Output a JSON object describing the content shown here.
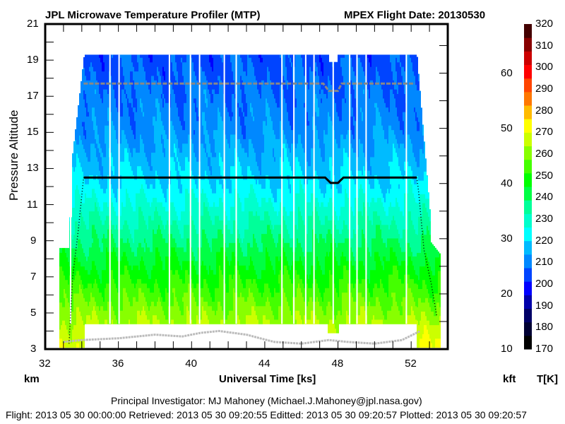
{
  "chart_data": {
    "type": "heatmap",
    "title_left": "JPL Microwave Temperature Profiler (MTP)",
    "title_right": "MPEX  Flight Date: 20130530",
    "xlabel": "Universal Time [ks]",
    "ylabel": "Pressure Altitude",
    "ylabel_left_unit": "km",
    "ylabel_right_unit": "kft",
    "colorbar_label": "T[K]",
    "xlim": [
      32,
      54
    ],
    "ylim_km": [
      3,
      21
    ],
    "ylim_kft": [
      10,
      68.9
    ],
    "x_ticks": [
      "32",
      "36",
      "40",
      "44",
      "48",
      "52"
    ],
    "y_ticks_km": [
      "3",
      "5",
      "7",
      "9",
      "11",
      "13",
      "15",
      "17",
      "19",
      "21"
    ],
    "y_ticks_kft": [
      "10",
      "20",
      "30",
      "40",
      "50",
      "60"
    ],
    "colorbar": {
      "range": [
        170,
        320
      ],
      "ticks": [
        "170",
        "180",
        "190",
        "200",
        "210",
        "220",
        "230",
        "240",
        "250",
        "260",
        "270",
        "280",
        "290",
        "300",
        "310",
        "320"
      ],
      "colors": [
        "#000000",
        "#000033",
        "#000066",
        "#0000aa",
        "#0000ff",
        "#0044ff",
        "#0088ff",
        "#00bbff",
        "#00ffff",
        "#00ffcc",
        "#00ff99",
        "#00ff44",
        "#00ff00",
        "#44ff00",
        "#88ff00",
        "#ccff00",
        "#ffff00",
        "#ffbb00",
        "#ff7700",
        "#ff4400",
        "#ff0000",
        "#cc0000",
        "#880000",
        "#440000"
      ]
    },
    "aircraft_altitude_km": {
      "ascent": [
        [
          33.3,
          3.3
        ],
        [
          33.5,
          7.0
        ],
        [
          33.8,
          9.5
        ],
        [
          34.1,
          12.5
        ]
      ],
      "cruise": [
        [
          34.1,
          12.5
        ],
        [
          47.3,
          12.5
        ],
        [
          47.6,
          12.2
        ],
        [
          48.0,
          12.2
        ],
        [
          48.3,
          12.5
        ],
        [
          52.3,
          12.5
        ]
      ],
      "descent": [
        [
          52.3,
          12.5
        ],
        [
          52.4,
          11.8
        ],
        [
          52.7,
          8.5
        ],
        [
          53.1,
          6.6
        ],
        [
          53.4,
          4.8
        ]
      ]
    },
    "tropopause_km": [
      [
        34.1,
        17.7
      ],
      [
        47.2,
        17.7
      ],
      [
        47.5,
        17.3
      ],
      [
        48.0,
        17.3
      ],
      [
        48.2,
        17.7
      ],
      [
        52.2,
        17.7
      ]
    ],
    "gray_surface_km": [
      [
        33.0,
        3.4
      ],
      [
        34.0,
        3.5
      ],
      [
        36.0,
        3.6
      ],
      [
        38.0,
        3.8
      ],
      [
        39.5,
        3.7
      ],
      [
        40.5,
        3.9
      ],
      [
        41.5,
        4.0
      ],
      [
        43.0,
        3.8
      ],
      [
        44.5,
        3.4
      ],
      [
        46.0,
        3.3
      ],
      [
        47.5,
        3.5
      ],
      [
        48.5,
        3.4
      ],
      [
        50.0,
        3.3
      ],
      [
        51.5,
        3.5
      ],
      [
        52.5,
        4.0
      ]
    ],
    "coverage_top_km": 19.3,
    "data_gaps_ks": [
      33.35,
      35.5,
      36.0,
      38.75,
      39.9,
      40.4,
      41.75,
      42.4,
      44.9,
      45.55,
      46.2,
      46.65,
      47.7,
      48.6,
      49.0,
      49.5,
      51.7
    ],
    "annotation_rows": [
      "Principal Investigator: MJ Mahoney (Michael.J.Mahoney@jpl.nasa.gov)",
      "Flight: 2013 05 30 00:00:00   Retrieved: 2013 05 30 09:20:55   Editted: 2013 05 30 09:20:57  Plotted: 2013 05 30 09:20:57"
    ]
  }
}
